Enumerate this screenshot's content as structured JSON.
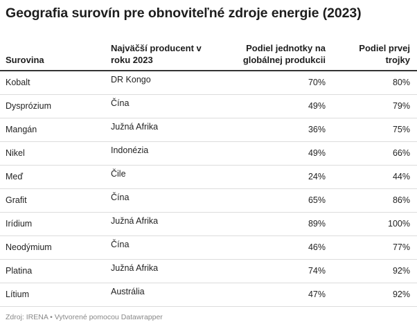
{
  "title": "Geografia surovín pre obnoviteľné zdroje energie (2023)",
  "headers": {
    "col1": "Surovina",
    "col2_line1": "Najväčší producent v",
    "col2_line2": "roku 2023",
    "col3_line1": "Podiel jednotky na",
    "col3_line2": "globálnej produkcii",
    "col4_line1": "Podiel prvej",
    "col4_line2": "trojky"
  },
  "rows": [
    {
      "material": "Kobalt",
      "producer": "DR Kongo",
      "top_share": "70%",
      "top3_share": "80%"
    },
    {
      "material": "Dysprózium",
      "producer": "Čína",
      "top_share": "49%",
      "top3_share": "79%"
    },
    {
      "material": "Mangán",
      "producer": "Južná Afrika",
      "top_share": "36%",
      "top3_share": "75%"
    },
    {
      "material": "Nikel",
      "producer": "Indonézia",
      "top_share": "49%",
      "top3_share": "66%"
    },
    {
      "material": "Meď",
      "producer": "Čile",
      "top_share": "24%",
      "top3_share": "44%"
    },
    {
      "material": "Grafit",
      "producer": "Čína",
      "top_share": "65%",
      "top3_share": "86%"
    },
    {
      "material": "Irídium",
      "producer": "Južná Afrika",
      "top_share": "89%",
      "top3_share": "100%"
    },
    {
      "material": "Neodýmium",
      "producer": "Čína",
      "top_share": "46%",
      "top3_share": "77%"
    },
    {
      "material": "Platina",
      "producer": "Južná Afrika",
      "top_share": "74%",
      "top3_share": "92%"
    },
    {
      "material": "Lítium",
      "producer": "Austrália",
      "top_share": "47%",
      "top3_share": "92%"
    }
  ],
  "footer": "Zdroj: IRENA • Vytvorené pomocou Datawrapper"
}
